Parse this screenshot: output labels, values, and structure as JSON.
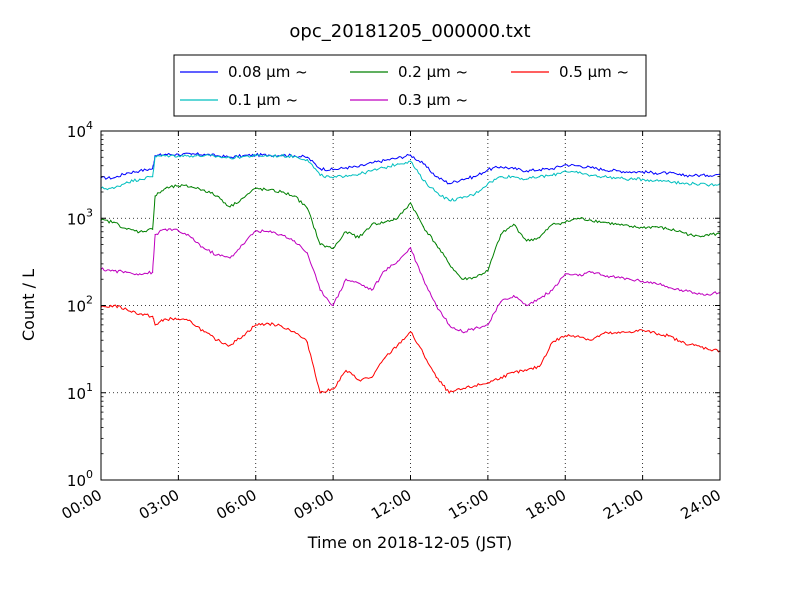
{
  "chart_data": {
    "type": "line",
    "title": "opc_20181205_000000.txt",
    "xlabel": "Time on 2018-12-05 (JST)",
    "ylabel": "Count / L",
    "xlim": [
      "00:00",
      "24:00"
    ],
    "ylim": [
      1,
      10000
    ],
    "yscale": "log",
    "x_tick_labels": [
      "00:00",
      "03:00",
      "06:00",
      "09:00",
      "12:00",
      "15:00",
      "18:00",
      "21:00",
      "24:00"
    ],
    "y_tick_labels": [
      {
        "base": "10",
        "exp": "0"
      },
      {
        "base": "10",
        "exp": "1"
      },
      {
        "base": "10",
        "exp": "2"
      },
      {
        "base": "10",
        "exp": "3"
      },
      {
        "base": "10",
        "exp": "4"
      }
    ],
    "grid": true,
    "legend_position": "top-center",
    "x_hours": [
      0,
      0.5,
      1,
      1.5,
      2,
      2.1,
      2.5,
      3,
      3.5,
      4,
      4.5,
      5,
      5.5,
      6,
      6.5,
      7,
      7.5,
      8,
      8.5,
      9,
      9.5,
      10,
      10.5,
      11,
      11.5,
      12,
      12.5,
      13,
      13.5,
      14,
      14.5,
      15,
      15.5,
      16,
      16.5,
      17,
      17.5,
      18,
      18.5,
      19,
      19.5,
      20,
      20.5,
      21,
      21.5,
      22,
      22.5,
      23,
      23.5,
      24
    ],
    "series": [
      {
        "name": "0.08 μm ~",
        "color": "#0000ff",
        "values": [
          2900,
          2900,
          3300,
          3500,
          3700,
          5200,
          5400,
          5400,
          5400,
          5400,
          5200,
          5000,
          5200,
          5300,
          5300,
          5300,
          5200,
          5000,
          3700,
          3600,
          3800,
          3900,
          4300,
          4600,
          4900,
          5300,
          4200,
          3000,
          2500,
          2800,
          3000,
          3600,
          3900,
          3700,
          3500,
          3600,
          3700,
          4100,
          4000,
          3800,
          3600,
          3500,
          3400,
          3400,
          3300,
          3300,
          3100,
          3100,
          3100,
          3200
        ]
      },
      {
        "name": "0.1 μm ~",
        "color": "#00bfbf",
        "values": [
          2200,
          2200,
          2600,
          2800,
          3000,
          5100,
          5200,
          5200,
          5200,
          5200,
          5100,
          4900,
          5100,
          5200,
          5200,
          5200,
          5100,
          4700,
          3100,
          2900,
          3100,
          3200,
          3500,
          3800,
          4200,
          4500,
          2700,
          2000,
          1600,
          1700,
          1900,
          2500,
          3000,
          3000,
          2800,
          3000,
          3100,
          3500,
          3300,
          3100,
          3000,
          2900,
          2800,
          2800,
          2700,
          2700,
          2500,
          2500,
          2400,
          2500
        ]
      },
      {
        "name": "0.2 μm ~",
        "color": "#008000",
        "values": [
          950,
          900,
          750,
          700,
          750,
          1800,
          2200,
          2350,
          2300,
          2100,
          1800,
          1350,
          1700,
          2200,
          2100,
          2000,
          1800,
          1300,
          500,
          450,
          700,
          600,
          850,
          900,
          1000,
          1500,
          800,
          500,
          300,
          200,
          210,
          250,
          650,
          850,
          550,
          600,
          850,
          900,
          1000,
          950,
          900,
          850,
          800,
          780,
          800,
          750,
          700,
          620,
          650,
          660
        ]
      },
      {
        "name": "0.3 μm ~",
        "color": "#bf00bf",
        "values": [
          260,
          250,
          240,
          230,
          240,
          650,
          750,
          720,
          600,
          450,
          380,
          350,
          500,
          720,
          700,
          650,
          550,
          400,
          150,
          100,
          200,
          180,
          150,
          250,
          320,
          460,
          200,
          100,
          60,
          50,
          55,
          60,
          110,
          130,
          100,
          120,
          150,
          230,
          220,
          240,
          220,
          210,
          200,
          190,
          180,
          160,
          150,
          140,
          135,
          140
        ]
      },
      {
        "name": "0.5 μm ~",
        "color": "#ff0000",
        "values": [
          95,
          100,
          90,
          80,
          75,
          60,
          70,
          70,
          65,
          50,
          40,
          35,
          45,
          60,
          62,
          58,
          50,
          38,
          10,
          11,
          18,
          14,
          15,
          25,
          35,
          50,
          28,
          15,
          10,
          11,
          12,
          13,
          15,
          17,
          18,
          20,
          38,
          45,
          45,
          40,
          48,
          48,
          50,
          52,
          48,
          45,
          38,
          35,
          32,
          30
        ]
      }
    ]
  }
}
